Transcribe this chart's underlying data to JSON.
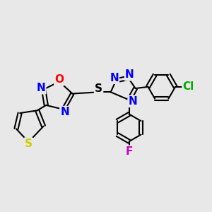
{
  "background_color": "#e8e8e8",
  "bond_color": "#000000",
  "bond_width": 1.5,
  "figsize": [
    3.0,
    3.0
  ],
  "dpi": 100,
  "xlim": [
    0,
    8
  ],
  "ylim": [
    0.5,
    5
  ]
}
